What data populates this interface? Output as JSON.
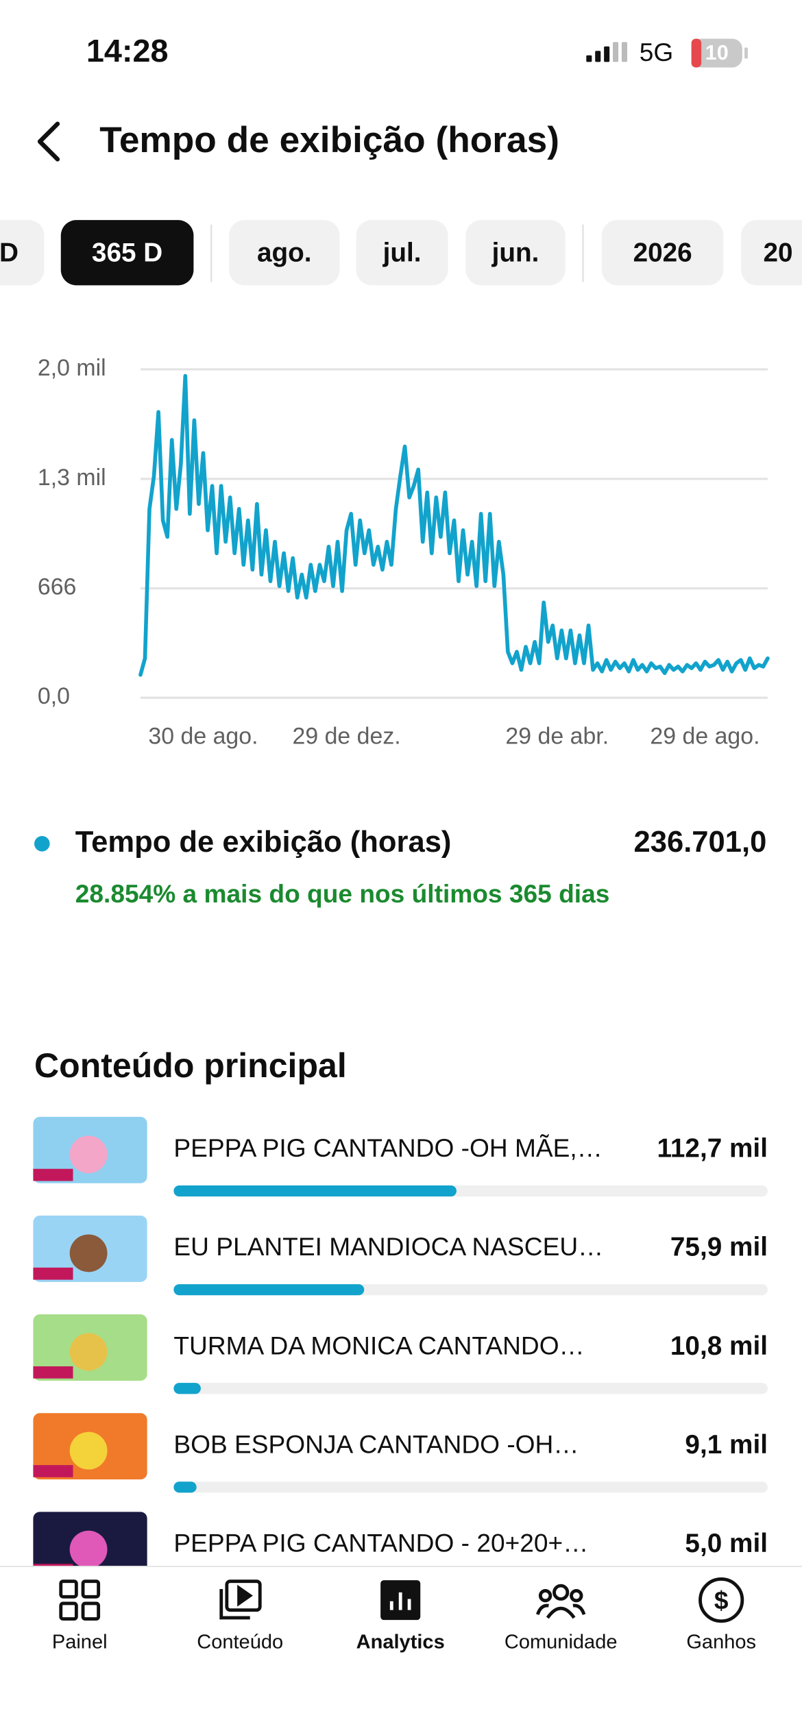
{
  "status_bar": {
    "time": "14:28",
    "network": "5G",
    "battery": "10"
  },
  "header": {
    "title": "Tempo de exibição (horas)"
  },
  "filters": {
    "options": [
      "D",
      "365 D",
      "ago.",
      "jul.",
      "jun.",
      "2026",
      "20"
    ],
    "selected": 1
  },
  "chart": {
    "type": "line",
    "color": "#12a3cc",
    "grid": true,
    "ylim": [
      0,
      2000
    ],
    "yticks": [
      {
        "value": 0,
        "label": "0,0"
      },
      {
        "value": 666,
        "label": "666"
      },
      {
        "value": 1333,
        "label": "1,3 mil"
      },
      {
        "value": 2000,
        "label": "2,0 mil"
      }
    ],
    "xlim": [
      0,
      140
    ],
    "xticks": [
      {
        "value": 14,
        "label": "30 de ago."
      },
      {
        "value": 46,
        "label": "29 de dez."
      },
      {
        "value": 93,
        "label": "29 de abr."
      },
      {
        "value": 126,
        "label": "29 de ago."
      }
    ],
    "values": [
      140,
      240,
      1150,
      1350,
      1740,
      1080,
      980,
      1570,
      1150,
      1420,
      1960,
      1120,
      1690,
      1180,
      1490,
      1020,
      1290,
      880,
      1290,
      950,
      1220,
      880,
      1150,
      810,
      1080,
      780,
      1180,
      750,
      1020,
      710,
      950,
      680,
      880,
      650,
      850,
      610,
      750,
      610,
      810,
      650,
      810,
      710,
      920,
      680,
      950,
      650,
      1020,
      1120,
      810,
      1080,
      880,
      1020,
      810,
      920,
      780,
      950,
      810,
      1150,
      1350,
      1530,
      1220,
      1290,
      1390,
      950,
      1250,
      880,
      1220,
      980,
      1250,
      880,
      1080,
      710,
      1020,
      750,
      950,
      680,
      1120,
      710,
      1120,
      680,
      950,
      750,
      280,
      210,
      280,
      170,
      310,
      210,
      340,
      210,
      580,
      340,
      440,
      240,
      410,
      240,
      410,
      210,
      380,
      210,
      440,
      170,
      210,
      160,
      230,
      170,
      220,
      180,
      210,
      160,
      230,
      170,
      200,
      160,
      210,
      180,
      190,
      150,
      200,
      170,
      190,
      160,
      200,
      180,
      210,
      170,
      220,
      190,
      200,
      230,
      170,
      220,
      160,
      210,
      230,
      170,
      240,
      180,
      200,
      190,
      240
    ]
  },
  "summary": {
    "title": "Tempo de exibição (horas)",
    "value": 236701.0,
    "value_label": "236.701,0",
    "change": "28.854% a mais do que nos últimos 365 dias"
  },
  "top_content": {
    "title": "Conteúdo principal",
    "items": [
      {
        "name": "PEPPA PIG CANTANDO -OH MÃE,…",
        "value": 112700,
        "value_label": "112,7 mil"
      },
      {
        "name": "EU PLANTEI MANDIOCA NASCEU…",
        "value": 75900,
        "value_label": "75,9 mil"
      },
      {
        "name": "TURMA DA MONICA CANTANDO…",
        "value": 10800,
        "value_label": "10,8 mil"
      },
      {
        "name": "BOB ESPONJA CANTANDO -OH…",
        "value": 9100,
        "value_label": "9,1 mil"
      },
      {
        "name": "PEPPA PIG CANTANDO - 20+20+…",
        "value": 5000,
        "value_label": "5,0 mil"
      }
    ]
  },
  "nav": {
    "items": [
      "Painel",
      "Conteúdo",
      "Analytics",
      "Comunidade",
      "Ganhos"
    ],
    "selected": 2
  }
}
